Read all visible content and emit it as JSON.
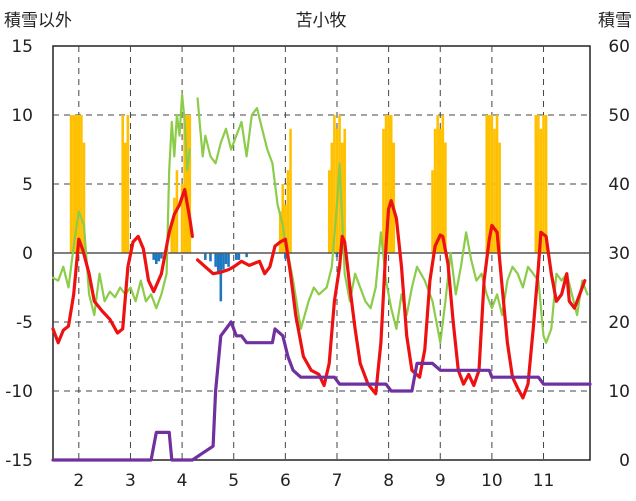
{
  "chart_data": {
    "type": "line",
    "title": "苫小牧",
    "y_left_label": "積雪以外",
    "y_right_label": "積雪",
    "ylim_left": [
      -15,
      15
    ],
    "ylim_right": [
      0,
      60
    ],
    "xlim": [
      1.5,
      11.9
    ],
    "left_ticks": [
      "15",
      "10",
      "5",
      "0",
      "-5",
      "-10",
      "-15"
    ],
    "right_ticks": [
      "60",
      "50",
      "40",
      "30",
      "20",
      "10",
      "0"
    ],
    "x_ticks": [
      2,
      3,
      4,
      5,
      6,
      7,
      8,
      9,
      10,
      11
    ],
    "x_tick_labels": [
      "2",
      "3",
      "4",
      "5",
      "6",
      "7",
      "8",
      "9",
      "10",
      "11"
    ],
    "colors": {
      "temperature": "#ee1111",
      "wind": "#8ccc4a",
      "snow_depth": "#7030a0",
      "sunshine": "#ffc000",
      "precipitation": "#1f77c0"
    },
    "series": [
      {
        "key": "temperature",
        "axis": "left",
        "points": [
          [
            1.5,
            -5.5
          ],
          [
            1.6,
            -6.5
          ],
          [
            1.7,
            -5.6
          ],
          [
            1.8,
            -5.3
          ],
          [
            1.9,
            -3.0
          ],
          [
            2.0,
            1.0
          ],
          [
            2.08,
            0.2
          ],
          [
            2.2,
            -1.5
          ],
          [
            2.3,
            -3.5
          ],
          [
            2.45,
            -4.2
          ],
          [
            2.6,
            -4.8
          ],
          [
            2.75,
            -5.8
          ],
          [
            2.85,
            -5.5
          ],
          [
            2.95,
            -1.0
          ],
          [
            3.05,
            0.8
          ],
          [
            3.15,
            1.2
          ],
          [
            3.25,
            0.3
          ],
          [
            3.35,
            -2.0
          ],
          [
            3.45,
            -2.8
          ],
          [
            3.6,
            -1.5
          ],
          [
            3.75,
            1.5
          ],
          [
            3.85,
            2.8
          ],
          [
            3.95,
            3.5
          ],
          [
            4.05,
            4.6
          ],
          [
            4.15,
            2.5
          ],
          [
            4.2,
            1.2
          ]
        ]
      },
      {
        "key": "temperature",
        "axis": "left",
        "points": [
          [
            4.3,
            -0.5
          ],
          [
            4.45,
            -1.0
          ],
          [
            4.6,
            -1.5
          ],
          [
            4.75,
            -1.4
          ],
          [
            4.9,
            -1.2
          ],
          [
            5.0,
            -1.0
          ],
          [
            5.15,
            -0.6
          ],
          [
            5.3,
            -0.9
          ],
          [
            5.5,
            -0.6
          ],
          [
            5.6,
            -1.5
          ],
          [
            5.7,
            -1.0
          ],
          [
            5.8,
            0.5
          ],
          [
            5.9,
            0.8
          ],
          [
            6.0,
            1.0
          ],
          [
            6.1,
            -1.5
          ],
          [
            6.2,
            -4.5
          ],
          [
            6.35,
            -7.5
          ],
          [
            6.5,
            -8.5
          ],
          [
            6.65,
            -8.8
          ],
          [
            6.75,
            -9.6
          ],
          [
            6.85,
            -8.0
          ],
          [
            6.95,
            -3.5
          ],
          [
            7.05,
            -1.0
          ],
          [
            7.1,
            1.2
          ],
          [
            7.15,
            0.8
          ],
          [
            7.25,
            -2.5
          ],
          [
            7.35,
            -5.5
          ],
          [
            7.45,
            -8.0
          ],
          [
            7.6,
            -9.5
          ],
          [
            7.75,
            -10.2
          ],
          [
            7.85,
            -6.5
          ],
          [
            7.95,
            0.5
          ],
          [
            8.0,
            3.2
          ],
          [
            8.05,
            3.8
          ],
          [
            8.15,
            2.5
          ],
          [
            8.25,
            -1.0
          ],
          [
            8.35,
            -6.0
          ],
          [
            8.45,
            -8.5
          ],
          [
            8.6,
            -9.0
          ],
          [
            8.7,
            -7.0
          ],
          [
            8.8,
            -2.0
          ],
          [
            8.9,
            0.5
          ],
          [
            9.0,
            1.3
          ],
          [
            9.05,
            1.2
          ],
          [
            9.15,
            -0.8
          ],
          [
            9.25,
            -5.0
          ],
          [
            9.35,
            -8.5
          ],
          [
            9.45,
            -9.5
          ],
          [
            9.55,
            -8.8
          ],
          [
            9.65,
            -9.6
          ],
          [
            9.75,
            -8.5
          ],
          [
            9.85,
            -2.0
          ],
          [
            9.95,
            1.0
          ],
          [
            10.0,
            2.0
          ],
          [
            10.1,
            1.5
          ],
          [
            10.2,
            -2.5
          ],
          [
            10.3,
            -6.5
          ],
          [
            10.4,
            -9.0
          ],
          [
            10.5,
            -9.8
          ],
          [
            10.6,
            -10.5
          ],
          [
            10.7,
            -9.5
          ],
          [
            10.8,
            -5.5
          ],
          [
            10.9,
            -1.0
          ],
          [
            10.95,
            1.5
          ],
          [
            11.05,
            1.2
          ],
          [
            11.15,
            -1.5
          ],
          [
            11.25,
            -3.5
          ],
          [
            11.35,
            -3.0
          ],
          [
            11.45,
            -1.5
          ],
          [
            11.5,
            -3.5
          ],
          [
            11.6,
            -4.0
          ],
          [
            11.7,
            -3.0
          ],
          [
            11.8,
            -2.0
          ]
        ]
      },
      {
        "key": "wind",
        "axis": "left",
        "points": [
          [
            1.5,
            -1.8
          ],
          [
            1.6,
            -2.0
          ],
          [
            1.7,
            -1.0
          ],
          [
            1.8,
            -2.5
          ],
          [
            1.9,
            0.5
          ],
          [
            2.0,
            3.0
          ],
          [
            2.1,
            2.0
          ],
          [
            2.2,
            -3.0
          ],
          [
            2.3,
            -4.5
          ],
          [
            2.4,
            -1.5
          ],
          [
            2.5,
            -3.5
          ],
          [
            2.6,
            -2.8
          ],
          [
            2.7,
            -3.2
          ],
          [
            2.8,
            -2.5
          ],
          [
            2.9,
            -3.0
          ],
          [
            3.0,
            -2.5
          ],
          [
            3.1,
            -3.5
          ],
          [
            3.2,
            -2.0
          ],
          [
            3.3,
            -3.5
          ],
          [
            3.4,
            -3.0
          ],
          [
            3.5,
            -4.0
          ],
          [
            3.6,
            -3.0
          ],
          [
            3.7,
            -1.5
          ],
          [
            3.75,
            6.0
          ],
          [
            3.8,
            9.5
          ],
          [
            3.85,
            7.0
          ],
          [
            3.9,
            10.0
          ],
          [
            3.95,
            8.5
          ],
          [
            4.0,
            11.5
          ],
          [
            4.05,
            9.5
          ],
          [
            4.1,
            6.0
          ],
          [
            4.15,
            7.5
          ]
        ]
      },
      {
        "key": "wind",
        "axis": "left",
        "points": [
          [
            4.3,
            11.2
          ],
          [
            4.35,
            9.0
          ],
          [
            4.4,
            7.0
          ],
          [
            4.45,
            8.5
          ],
          [
            4.55,
            7.0
          ],
          [
            4.65,
            6.5
          ],
          [
            4.75,
            8.0
          ],
          [
            4.85,
            9.0
          ],
          [
            4.95,
            7.5
          ],
          [
            5.05,
            8.5
          ],
          [
            5.15,
            9.5
          ],
          [
            5.25,
            7.0
          ],
          [
            5.35,
            10.0
          ],
          [
            5.45,
            10.5
          ],
          [
            5.55,
            9.0
          ],
          [
            5.65,
            7.5
          ],
          [
            5.75,
            6.5
          ],
          [
            5.85,
            3.5
          ],
          [
            5.95,
            2.0
          ],
          [
            6.0,
            0.5
          ],
          [
            6.05,
            0.0
          ],
          [
            6.15,
            -2.0
          ],
          [
            6.3,
            -5.5
          ],
          [
            6.45,
            -3.5
          ],
          [
            6.55,
            -2.5
          ],
          [
            6.65,
            -3.0
          ],
          [
            6.8,
            -2.5
          ],
          [
            6.9,
            -1.0
          ],
          [
            7.0,
            3.5
          ],
          [
            7.05,
            6.5
          ],
          [
            7.1,
            2.5
          ],
          [
            7.15,
            -1.5
          ],
          [
            7.25,
            -3.5
          ],
          [
            7.35,
            -1.5
          ],
          [
            7.45,
            -2.5
          ],
          [
            7.55,
            -3.5
          ],
          [
            7.65,
            -4.0
          ],
          [
            7.75,
            -2.5
          ],
          [
            7.85,
            1.5
          ],
          [
            7.95,
            -2.0
          ],
          [
            8.05,
            -4.0
          ],
          [
            8.15,
            -5.5
          ],
          [
            8.25,
            -3.0
          ],
          [
            8.35,
            -4.5
          ],
          [
            8.45,
            -2.5
          ],
          [
            8.55,
            -1.0
          ],
          [
            8.7,
            -2.0
          ],
          [
            8.85,
            -3.5
          ],
          [
            9.0,
            -6.5
          ],
          [
            9.1,
            -3.5
          ],
          [
            9.2,
            0.0
          ],
          [
            9.3,
            -3.0
          ],
          [
            9.4,
            -1.0
          ],
          [
            9.5,
            1.5
          ],
          [
            9.6,
            -0.5
          ],
          [
            9.7,
            -2.0
          ],
          [
            9.8,
            -1.5
          ],
          [
            9.9,
            -3.0
          ],
          [
            10.0,
            -4.0
          ],
          [
            10.1,
            -3.0
          ],
          [
            10.2,
            -4.5
          ],
          [
            10.3,
            -2.0
          ],
          [
            10.4,
            -1.0
          ],
          [
            10.5,
            -1.5
          ],
          [
            10.6,
            -2.5
          ],
          [
            10.7,
            -1.0
          ],
          [
            10.8,
            -1.5
          ],
          [
            10.9,
            -2.0
          ],
          [
            11.0,
            -6.0
          ],
          [
            11.05,
            -6.5
          ],
          [
            11.15,
            -5.5
          ],
          [
            11.25,
            -1.5
          ],
          [
            11.35,
            -2.0
          ],
          [
            11.45,
            -1.5
          ],
          [
            11.55,
            -3.0
          ],
          [
            11.65,
            -4.5
          ],
          [
            11.75,
            -2.0
          ],
          [
            11.85,
            -3.0
          ]
        ]
      },
      {
        "key": "snow_depth",
        "axis": "right",
        "points": [
          [
            1.5,
            0
          ],
          [
            3.4,
            0
          ],
          [
            3.5,
            4
          ],
          [
            3.75,
            4
          ],
          [
            3.8,
            0
          ],
          [
            4.2,
            0
          ],
          [
            4.4,
            1
          ],
          [
            4.6,
            2
          ],
          [
            4.65,
            10
          ],
          [
            4.75,
            18
          ],
          [
            4.85,
            19
          ],
          [
            4.95,
            20
          ],
          [
            5.05,
            18
          ],
          [
            5.15,
            18
          ],
          [
            5.25,
            17
          ],
          [
            5.75,
            17
          ],
          [
            5.8,
            19
          ],
          [
            5.95,
            18
          ],
          [
            6.05,
            15
          ],
          [
            6.15,
            13
          ],
          [
            6.3,
            12
          ],
          [
            6.95,
            12
          ],
          [
            7.05,
            11
          ],
          [
            7.95,
            11
          ],
          [
            8.05,
            10
          ],
          [
            8.45,
            10
          ],
          [
            8.55,
            14
          ],
          [
            8.85,
            14
          ],
          [
            9.0,
            13
          ],
          [
            9.95,
            13
          ],
          [
            10.0,
            12
          ],
          [
            10.9,
            12
          ],
          [
            11.0,
            11
          ],
          [
            11.9,
            11
          ]
        ]
      }
    ],
    "sunshine_bars": [
      [
        1.85,
        10
      ],
      [
        1.9,
        10
      ],
      [
        1.95,
        10
      ],
      [
        2.0,
        10
      ],
      [
        2.05,
        10
      ],
      [
        2.1,
        8
      ],
      [
        2.85,
        10
      ],
      [
        2.9,
        8
      ],
      [
        2.95,
        10
      ],
      [
        3.8,
        2
      ],
      [
        3.85,
        4
      ],
      [
        3.9,
        6
      ],
      [
        4.0,
        5
      ],
      [
        4.05,
        10
      ],
      [
        4.1,
        10
      ],
      [
        4.15,
        10
      ],
      [
        5.9,
        3
      ],
      [
        5.95,
        5
      ],
      [
        6.0,
        3.5
      ],
      [
        6.05,
        6
      ],
      [
        6.1,
        9
      ],
      [
        6.85,
        6
      ],
      [
        6.9,
        8
      ],
      [
        6.95,
        10
      ],
      [
        7.0,
        9
      ],
      [
        7.05,
        10
      ],
      [
        7.1,
        8
      ],
      [
        7.15,
        9
      ],
      [
        7.9,
        9
      ],
      [
        7.95,
        10
      ],
      [
        8.0,
        10
      ],
      [
        8.05,
        10
      ],
      [
        8.1,
        8
      ],
      [
        8.85,
        6
      ],
      [
        8.9,
        9
      ],
      [
        8.95,
        10
      ],
      [
        9.0,
        9
      ],
      [
        9.05,
        10
      ],
      [
        9.1,
        8
      ],
      [
        9.9,
        10
      ],
      [
        9.95,
        10
      ],
      [
        10.0,
        10
      ],
      [
        10.05,
        9
      ],
      [
        10.1,
        10
      ],
      [
        10.15,
        8
      ],
      [
        10.85,
        10
      ],
      [
        10.9,
        10
      ],
      [
        10.95,
        9
      ],
      [
        11.0,
        10
      ],
      [
        11.05,
        10
      ]
    ],
    "precipitation_bars": [
      [
        3.45,
        -0.5
      ],
      [
        3.5,
        -0.8
      ],
      [
        3.55,
        -0.6
      ],
      [
        3.6,
        -0.4
      ],
      [
        4.45,
        -0.5
      ],
      [
        4.55,
        -0.6
      ],
      [
        4.65,
        -1.0
      ],
      [
        4.7,
        -1.4
      ],
      [
        4.75,
        -3.5
      ],
      [
        4.8,
        -1.2
      ],
      [
        4.85,
        -0.8
      ],
      [
        4.9,
        -1.0
      ],
      [
        5.05,
        -0.5
      ],
      [
        5.1,
        -0.5
      ],
      [
        5.25,
        -0.3
      ],
      [
        6.0,
        -0.4
      ],
      [
        6.05,
        -0.6
      ],
      [
        7.0,
        -0.3
      ]
    ]
  }
}
